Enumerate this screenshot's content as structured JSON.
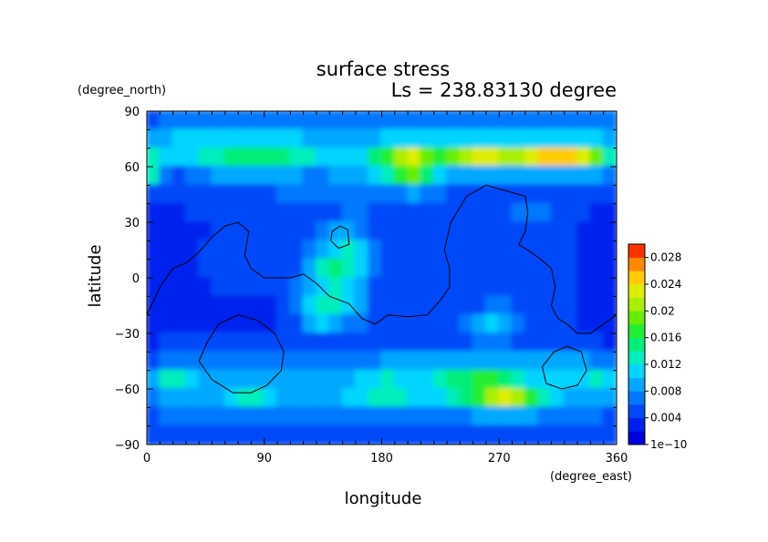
{
  "chart_data": {
    "type": "heatmap",
    "title": "surface stress",
    "subtitle": "Ls = 238.83130 degree",
    "xlabel": "longitude",
    "ylabel": "latitude",
    "x_units": "(degree_east)",
    "y_units": "(degree_north)",
    "xlim": [
      0,
      360
    ],
    "ylim": [
      -90,
      90
    ],
    "x_ticks": [
      0,
      90,
      180,
      270,
      360
    ],
    "y_ticks": [
      -90,
      -60,
      -30,
      0,
      30,
      60,
      90
    ],
    "x_tick_labels": [
      "0",
      "90",
      "180",
      "270",
      "360"
    ],
    "y_tick_labels": [
      "−90",
      "−60",
      "−30",
      "0",
      "30",
      "60",
      "90"
    ],
    "colorbar": {
      "min": 0,
      "max": 0.03,
      "levels": 15,
      "tick_values": [
        0,
        0.004,
        0.008,
        0.012,
        0.016,
        0.02,
        0.024,
        0.028
      ],
      "tick_labels": [
        "1e−10",
        "0.004",
        "0.008",
        "0.012",
        "0.016",
        "0.02",
        "0.024",
        "0.028"
      ],
      "colors": [
        "#0000dd",
        "#0020ee",
        "#0048f8",
        "#0078ff",
        "#00a8ff",
        "#00d4ff",
        "#00eebb",
        "#00ee77",
        "#22ee33",
        "#66ee00",
        "#aaee00",
        "#ddee00",
        "#ffcc00",
        "#ff8800",
        "#ff3300"
      ]
    },
    "field_lat": [
      85,
      75,
      65,
      55,
      45,
      35,
      25,
      15,
      5,
      -5,
      -15,
      -25,
      -35,
      -45,
      -55,
      -65,
      -75,
      -85
    ],
    "field_lon": [
      5,
      15,
      25,
      35,
      45,
      55,
      65,
      75,
      85,
      95,
      105,
      115,
      125,
      135,
      145,
      155,
      165,
      175,
      185,
      195,
      205,
      215,
      225,
      235,
      245,
      255,
      265,
      275,
      285,
      295,
      305,
      315,
      325,
      335,
      345,
      355
    ],
    "field": [
      [
        0.005,
        0.006,
        0.006,
        0.007,
        0.007,
        0.007,
        0.007,
        0.007,
        0.007,
        0.007,
        0.007,
        0.007,
        0.006,
        0.006,
        0.006,
        0.006,
        0.006,
        0.007,
        0.007,
        0.007,
        0.007,
        0.007,
        0.007,
        0.007,
        0.007,
        0.007,
        0.007,
        0.007,
        0.007,
        0.007,
        0.007,
        0.007,
        0.007,
        0.007,
        0.007,
        0.006
      ],
      [
        0.008,
        0.009,
        0.01,
        0.011,
        0.011,
        0.011,
        0.011,
        0.011,
        0.011,
        0.011,
        0.011,
        0.01,
        0.009,
        0.008,
        0.008,
        0.008,
        0.008,
        0.009,
        0.01,
        0.01,
        0.011,
        0.011,
        0.011,
        0.011,
        0.011,
        0.011,
        0.011,
        0.011,
        0.011,
        0.011,
        0.011,
        0.011,
        0.011,
        0.011,
        0.011,
        0.009
      ],
      [
        0.012,
        0.01,
        0.01,
        0.011,
        0.012,
        0.013,
        0.014,
        0.014,
        0.014,
        0.014,
        0.014,
        0.013,
        0.012,
        0.011,
        0.011,
        0.01,
        0.011,
        0.014,
        0.017,
        0.021,
        0.023,
        0.019,
        0.016,
        0.018,
        0.02,
        0.022,
        0.023,
        0.021,
        0.02,
        0.022,
        0.024,
        0.025,
        0.024,
        0.022,
        0.018,
        0.012
      ],
      [
        0.012,
        0.006,
        0.005,
        0.006,
        0.007,
        0.008,
        0.008,
        0.009,
        0.009,
        0.009,
        0.008,
        0.008,
        0.007,
        0.007,
        0.008,
        0.008,
        0.008,
        0.01,
        0.013,
        0.016,
        0.019,
        0.014,
        0.011,
        0.009,
        0.009,
        0.009,
        0.009,
        0.009,
        0.009,
        0.009,
        0.009,
        0.009,
        0.009,
        0.009,
        0.008,
        0.006
      ],
      [
        0.004,
        0.004,
        0.004,
        0.004,
        0.005,
        0.005,
        0.005,
        0.005,
        0.005,
        0.005,
        0.006,
        0.006,
        0.006,
        0.006,
        0.006,
        0.006,
        0.006,
        0.006,
        0.006,
        0.007,
        0.008,
        0.007,
        0.006,
        0.005,
        0.005,
        0.005,
        0.005,
        0.005,
        0.005,
        0.005,
        0.005,
        0.005,
        0.005,
        0.005,
        0.004,
        0.004
      ],
      [
        0.003,
        0.003,
        0.003,
        0.004,
        0.004,
        0.004,
        0.004,
        0.004,
        0.004,
        0.004,
        0.004,
        0.004,
        0.004,
        0.004,
        0.005,
        0.006,
        0.006,
        0.005,
        0.004,
        0.004,
        0.004,
        0.004,
        0.004,
        0.004,
        0.004,
        0.004,
        0.005,
        0.005,
        0.006,
        0.006,
        0.006,
        0.005,
        0.004,
        0.004,
        0.003,
        0.003
      ],
      [
        0.003,
        0.003,
        0.003,
        0.003,
        0.003,
        0.004,
        0.004,
        0.004,
        0.004,
        0.004,
        0.004,
        0.004,
        0.004,
        0.006,
        0.008,
        0.009,
        0.007,
        0.005,
        0.004,
        0.004,
        0.004,
        0.004,
        0.004,
        0.004,
        0.004,
        0.004,
        0.004,
        0.004,
        0.004,
        0.004,
        0.004,
        0.004,
        0.004,
        0.003,
        0.003,
        0.003
      ],
      [
        0.003,
        0.003,
        0.003,
        0.003,
        0.004,
        0.004,
        0.004,
        0.005,
        0.005,
        0.005,
        0.004,
        0.004,
        0.006,
        0.009,
        0.011,
        0.012,
        0.01,
        0.006,
        0.004,
        0.004,
        0.004,
        0.004,
        0.004,
        0.004,
        0.004,
        0.004,
        0.004,
        0.004,
        0.004,
        0.004,
        0.004,
        0.004,
        0.004,
        0.003,
        0.003,
        0.003
      ],
      [
        0.003,
        0.003,
        0.003,
        0.003,
        0.004,
        0.004,
        0.004,
        0.004,
        0.004,
        0.004,
        0.004,
        0.005,
        0.008,
        0.012,
        0.014,
        0.013,
        0.01,
        0.006,
        0.004,
        0.004,
        0.004,
        0.004,
        0.004,
        0.004,
        0.004,
        0.004,
        0.004,
        0.004,
        0.004,
        0.004,
        0.004,
        0.004,
        0.004,
        0.003,
        0.003,
        0.003
      ],
      [
        0.003,
        0.003,
        0.003,
        0.003,
        0.003,
        0.004,
        0.004,
        0.004,
        0.004,
        0.004,
        0.004,
        0.006,
        0.009,
        0.011,
        0.012,
        0.011,
        0.008,
        0.005,
        0.004,
        0.004,
        0.004,
        0.004,
        0.004,
        0.004,
        0.004,
        0.004,
        0.004,
        0.004,
        0.004,
        0.004,
        0.004,
        0.004,
        0.004,
        0.003,
        0.003,
        0.003
      ],
      [
        0.003,
        0.003,
        0.003,
        0.003,
        0.003,
        0.003,
        0.003,
        0.003,
        0.003,
        0.003,
        0.004,
        0.006,
        0.01,
        0.013,
        0.013,
        0.011,
        0.008,
        0.005,
        0.004,
        0.004,
        0.004,
        0.004,
        0.004,
        0.004,
        0.004,
        0.005,
        0.006,
        0.006,
        0.005,
        0.004,
        0.004,
        0.004,
        0.004,
        0.003,
        0.003,
        0.003
      ],
      [
        0.003,
        0.003,
        0.003,
        0.003,
        0.003,
        0.003,
        0.003,
        0.003,
        0.003,
        0.003,
        0.004,
        0.005,
        0.008,
        0.01,
        0.009,
        0.007,
        0.006,
        0.005,
        0.005,
        0.005,
        0.005,
        0.005,
        0.005,
        0.005,
        0.006,
        0.008,
        0.01,
        0.009,
        0.006,
        0.005,
        0.004,
        0.004,
        0.004,
        0.003,
        0.003,
        0.003
      ],
      [
        0.003,
        0.004,
        0.004,
        0.004,
        0.004,
        0.004,
        0.004,
        0.004,
        0.004,
        0.004,
        0.004,
        0.004,
        0.004,
        0.004,
        0.004,
        0.004,
        0.004,
        0.004,
        0.004,
        0.004,
        0.004,
        0.004,
        0.004,
        0.004,
        0.005,
        0.006,
        0.006,
        0.006,
        0.005,
        0.004,
        0.004,
        0.004,
        0.004,
        0.004,
        0.004,
        0.003
      ],
      [
        0.005,
        0.006,
        0.006,
        0.006,
        0.006,
        0.006,
        0.006,
        0.006,
        0.006,
        0.006,
        0.006,
        0.006,
        0.006,
        0.006,
        0.006,
        0.006,
        0.006,
        0.007,
        0.008,
        0.008,
        0.008,
        0.008,
        0.009,
        0.009,
        0.009,
        0.009,
        0.009,
        0.009,
        0.009,
        0.008,
        0.008,
        0.008,
        0.008,
        0.008,
        0.007,
        0.006
      ],
      [
        0.008,
        0.012,
        0.013,
        0.011,
        0.009,
        0.008,
        0.008,
        0.008,
        0.008,
        0.008,
        0.008,
        0.008,
        0.008,
        0.008,
        0.008,
        0.009,
        0.01,
        0.011,
        0.012,
        0.011,
        0.01,
        0.01,
        0.012,
        0.014,
        0.015,
        0.016,
        0.016,
        0.015,
        0.013,
        0.011,
        0.01,
        0.01,
        0.01,
        0.01,
        0.012,
        0.01
      ],
      [
        0.006,
        0.008,
        0.009,
        0.009,
        0.009,
        0.009,
        0.01,
        0.012,
        0.013,
        0.011,
        0.009,
        0.008,
        0.008,
        0.008,
        0.009,
        0.01,
        0.011,
        0.012,
        0.013,
        0.012,
        0.011,
        0.01,
        0.01,
        0.012,
        0.014,
        0.017,
        0.02,
        0.022,
        0.02,
        0.016,
        0.012,
        0.01,
        0.009,
        0.009,
        0.009,
        0.008
      ],
      [
        0.005,
        0.006,
        0.006,
        0.006,
        0.006,
        0.006,
        0.006,
        0.006,
        0.006,
        0.006,
        0.006,
        0.006,
        0.006,
        0.006,
        0.006,
        0.006,
        0.007,
        0.007,
        0.007,
        0.007,
        0.007,
        0.007,
        0.007,
        0.007,
        0.007,
        0.008,
        0.009,
        0.009,
        0.009,
        0.008,
        0.007,
        0.007,
        0.007,
        0.006,
        0.006,
        0.005
      ],
      [
        0.004,
        0.004,
        0.004,
        0.004,
        0.004,
        0.004,
        0.004,
        0.004,
        0.004,
        0.004,
        0.004,
        0.004,
        0.004,
        0.004,
        0.004,
        0.004,
        0.004,
        0.004,
        0.004,
        0.004,
        0.004,
        0.004,
        0.004,
        0.004,
        0.004,
        0.004,
        0.004,
        0.004,
        0.004,
        0.004,
        0.004,
        0.004,
        0.004,
        0.004,
        0.004,
        0.004
      ]
    ],
    "contours": [
      {
        "name": "continent-outline",
        "points": [
          [
            0,
            -20
          ],
          [
            10,
            -5
          ],
          [
            20,
            5
          ],
          [
            30,
            8
          ],
          [
            40,
            14
          ],
          [
            50,
            22
          ],
          [
            60,
            28
          ],
          [
            70,
            30
          ],
          [
            78,
            25
          ],
          [
            75,
            12
          ],
          [
            80,
            5
          ],
          [
            90,
            0
          ],
          [
            110,
            0
          ],
          [
            120,
            2
          ],
          [
            130,
            -3
          ],
          [
            140,
            -10
          ],
          [
            155,
            -14
          ],
          [
            165,
            -22
          ],
          [
            175,
            -25
          ],
          [
            185,
            -20
          ],
          [
            200,
            -21
          ],
          [
            215,
            -20
          ],
          [
            225,
            -12
          ],
          [
            232,
            -5
          ],
          [
            232,
            5
          ],
          [
            228,
            15
          ],
          [
            233,
            30
          ],
          [
            245,
            44
          ],
          [
            260,
            50
          ],
          [
            275,
            47
          ],
          [
            290,
            44
          ],
          [
            292,
            35
          ],
          [
            290,
            25
          ],
          [
            285,
            18
          ],
          [
            292,
            15
          ],
          [
            302,
            10
          ],
          [
            310,
            5
          ],
          [
            313,
            -5
          ],
          [
            310,
            -15
          ],
          [
            315,
            -22
          ],
          [
            322,
            -25
          ],
          [
            330,
            -30
          ],
          [
            340,
            -30
          ],
          [
            350,
            -25
          ],
          [
            360,
            -20
          ]
        ]
      },
      {
        "name": "small-island",
        "points": [
          [
            141,
            20
          ],
          [
            142,
            25
          ],
          [
            148,
            28
          ],
          [
            154,
            26
          ],
          [
            155,
            18
          ],
          [
            147,
            16
          ],
          [
            141,
            20
          ]
        ]
      },
      {
        "name": "large-basin",
        "points": [
          [
            46,
            -35
          ],
          [
            55,
            -25
          ],
          [
            70,
            -20
          ],
          [
            85,
            -23
          ],
          [
            98,
            -30
          ],
          [
            105,
            -40
          ],
          [
            103,
            -50
          ],
          [
            92,
            -58
          ],
          [
            80,
            -62
          ],
          [
            66,
            -62
          ],
          [
            50,
            -55
          ],
          [
            40,
            -45
          ],
          [
            46,
            -35
          ]
        ]
      },
      {
        "name": "small-basin",
        "points": [
          [
            303,
            -48
          ],
          [
            312,
            -40
          ],
          [
            322,
            -37
          ],
          [
            333,
            -40
          ],
          [
            337,
            -50
          ],
          [
            330,
            -58
          ],
          [
            318,
            -60
          ],
          [
            306,
            -57
          ],
          [
            303,
            -48
          ]
        ]
      }
    ]
  }
}
